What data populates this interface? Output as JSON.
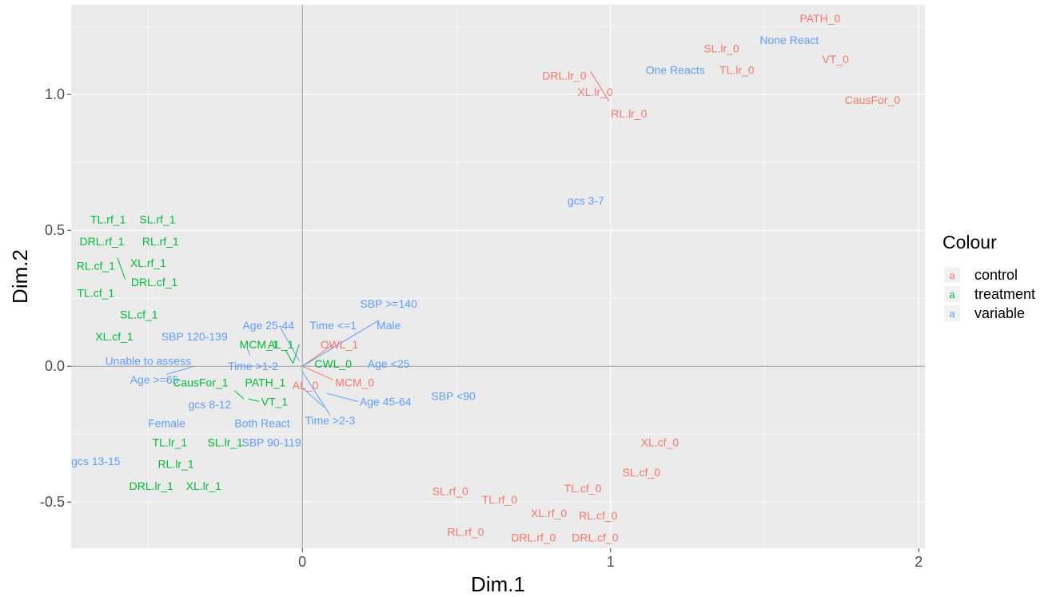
{
  "chart_data": {
    "type": "scatter",
    "xlabel": "Dim.1",
    "ylabel": "Dim.2",
    "xlim": [
      -0.75,
      2.02
    ],
    "ylim": [
      -0.67,
      1.33
    ],
    "x_ticks": [
      0,
      1,
      2
    ],
    "x_tick_labels": [
      "0",
      "1",
      "2"
    ],
    "y_ticks": [
      -0.5,
      0.0,
      0.5,
      1.0
    ],
    "y_tick_labels": [
      "-0.5",
      "0.0",
      "0.5",
      "1.0"
    ],
    "grid": true,
    "reference_lines": {
      "x": 0,
      "y": 0
    },
    "legend": {
      "title": "Colour",
      "key_glyph": "a",
      "placement": "right",
      "entries": [
        {
          "name": "control",
          "color": "#F8766D"
        },
        {
          "name": "treatment",
          "color": "#00BA38"
        },
        {
          "name": "variable",
          "color": "#619CFF"
        }
      ]
    },
    "points": [
      {
        "label": "PATH_0",
        "group": "control",
        "x": 1.68,
        "y": 1.28
      },
      {
        "label": "None React",
        "group": "variable",
        "x": 1.58,
        "y": 1.2
      },
      {
        "label": "SL.lr_0",
        "group": "control",
        "x": 1.36,
        "y": 1.17
      },
      {
        "label": "VT_0",
        "group": "control",
        "x": 1.73,
        "y": 1.13
      },
      {
        "label": "One Reacts",
        "group": "variable",
        "x": 1.21,
        "y": 1.09
      },
      {
        "label": "TL.lr_0",
        "group": "control",
        "x": 1.41,
        "y": 1.09
      },
      {
        "label": "DRL.lr_0",
        "group": "control",
        "x": 0.85,
        "y": 1.07
      },
      {
        "label": "XL.lr_0",
        "group": "control",
        "x": 0.95,
        "y": 1.01
      },
      {
        "label": "CausFor_0",
        "group": "control",
        "x": 1.85,
        "y": 0.98
      },
      {
        "label": "RL.lr_0",
        "group": "control",
        "x": 1.06,
        "y": 0.93
      },
      {
        "label": "gcs 3-7",
        "group": "variable",
        "x": 0.92,
        "y": 0.61
      },
      {
        "label": "TL.rf_1",
        "group": "treatment",
        "x": -0.63,
        "y": 0.54
      },
      {
        "label": "SL.rf_1",
        "group": "treatment",
        "x": -0.47,
        "y": 0.54
      },
      {
        "label": "DRL.rf_1",
        "group": "treatment",
        "x": -0.65,
        "y": 0.46
      },
      {
        "label": "RL.rf_1",
        "group": "treatment",
        "x": -0.46,
        "y": 0.46
      },
      {
        "label": "XL.rf_1",
        "group": "treatment",
        "x": -0.5,
        "y": 0.38
      },
      {
        "label": "RL.cf_1",
        "group": "treatment",
        "x": -0.67,
        "y": 0.37
      },
      {
        "label": "DRL.cf_1",
        "group": "treatment",
        "x": -0.48,
        "y": 0.31
      },
      {
        "label": "TL.cf_1",
        "group": "treatment",
        "x": -0.67,
        "y": 0.27
      },
      {
        "label": "SBP >=140",
        "group": "variable",
        "x": 0.28,
        "y": 0.23
      },
      {
        "label": "SL.cf_1",
        "group": "treatment",
        "x": -0.53,
        "y": 0.19
      },
      {
        "label": "Age 25-44",
        "group": "variable",
        "x": -0.11,
        "y": 0.15
      },
      {
        "label": "Time <=1",
        "group": "variable",
        "x": 0.1,
        "y": 0.15
      },
      {
        "label": "Male",
        "group": "variable",
        "x": 0.28,
        "y": 0.15
      },
      {
        "label": "XL.cf_1",
        "group": "treatment",
        "x": -0.61,
        "y": 0.11
      },
      {
        "label": "SBP 120-139",
        "group": "variable",
        "x": -0.35,
        "y": 0.11
      },
      {
        "label": "MCM_1",
        "group": "treatment",
        "x": -0.14,
        "y": 0.08
      },
      {
        "label": "AL_1",
        "group": "treatment",
        "x": -0.07,
        "y": 0.08
      },
      {
        "label": "OWL_1",
        "group": "control",
        "x": 0.12,
        "y": 0.08
      },
      {
        "label": "Unable to assess",
        "group": "variable",
        "x": -0.5,
        "y": 0.02
      },
      {
        "label": "Time >1-2",
        "group": "variable",
        "x": -0.16,
        "y": 0.0
      },
      {
        "label": "CWL_0",
        "group": "treatment",
        "x": 0.1,
        "y": 0.01
      },
      {
        "label": "Age <25",
        "group": "variable",
        "x": 0.28,
        "y": 0.01
      },
      {
        "label": "Age >=65",
        "group": "variable",
        "x": -0.48,
        "y": -0.05
      },
      {
        "label": "CausFor_1",
        "group": "treatment",
        "x": -0.33,
        "y": -0.06
      },
      {
        "label": "PATH_1",
        "group": "treatment",
        "x": -0.12,
        "y": -0.06
      },
      {
        "label": "AL_0",
        "group": "control",
        "x": 0.01,
        "y": -0.07
      },
      {
        "label": "MCM_0",
        "group": "control",
        "x": 0.17,
        "y": -0.06
      },
      {
        "label": "SBP <90",
        "group": "variable",
        "x": 0.49,
        "y": -0.11
      },
      {
        "label": "gcs 8-12",
        "group": "variable",
        "x": -0.3,
        "y": -0.14
      },
      {
        "label": "VT_1",
        "group": "treatment",
        "x": -0.09,
        "y": -0.13
      },
      {
        "label": "Age 45-64",
        "group": "variable",
        "x": 0.27,
        "y": -0.13
      },
      {
        "label": "Female",
        "group": "variable",
        "x": -0.44,
        "y": -0.21
      },
      {
        "label": "Both React",
        "group": "variable",
        "x": -0.13,
        "y": -0.21
      },
      {
        "label": "Time >2-3",
        "group": "variable",
        "x": 0.09,
        "y": -0.2
      },
      {
        "label": "XL.cf_0",
        "group": "control",
        "x": 1.16,
        "y": -0.28
      },
      {
        "label": "TL.lr_1",
        "group": "treatment",
        "x": -0.43,
        "y": -0.28
      },
      {
        "label": "SL.lr_1",
        "group": "treatment",
        "x": -0.25,
        "y": -0.28
      },
      {
        "label": "SBP 90-119",
        "group": "variable",
        "x": -0.1,
        "y": -0.28
      },
      {
        "label": "gcs 13-15",
        "group": "variable",
        "x": -0.67,
        "y": -0.35
      },
      {
        "label": "RL.lr_1",
        "group": "treatment",
        "x": -0.41,
        "y": -0.36
      },
      {
        "label": "SL.cf_0",
        "group": "control",
        "x": 1.1,
        "y": -0.39
      },
      {
        "label": "DRL.lr_1",
        "group": "treatment",
        "x": -0.49,
        "y": -0.44
      },
      {
        "label": "XL.lr_1",
        "group": "treatment",
        "x": -0.32,
        "y": -0.44
      },
      {
        "label": "TL.cf_0",
        "group": "control",
        "x": 0.91,
        "y": -0.45
      },
      {
        "label": "SL.rf_0",
        "group": "control",
        "x": 0.48,
        "y": -0.46
      },
      {
        "label": "TL.rf_0",
        "group": "control",
        "x": 0.64,
        "y": -0.49
      },
      {
        "label": "XL.rf_0",
        "group": "control",
        "x": 0.8,
        "y": -0.54
      },
      {
        "label": "RL.cf_0",
        "group": "control",
        "x": 0.96,
        "y": -0.55
      },
      {
        "label": "RL.rf_0",
        "group": "control",
        "x": 0.53,
        "y": -0.61
      },
      {
        "label": "DRL.rf_0",
        "group": "control",
        "x": 0.75,
        "y": -0.63
      },
      {
        "label": "DRL.cf_0",
        "group": "control",
        "x": 0.95,
        "y": -0.63
      }
    ],
    "segments": [
      {
        "group": "control",
        "x1": 0.935,
        "y1": 1.085,
        "x2": 0.995,
        "y2": 0.975
      },
      {
        "group": "control",
        "x1": 0.0,
        "y1": 0.0,
        "x2": 0.1,
        "y2": 0.08
      },
      {
        "group": "control",
        "x1": 0.0,
        "y1": 0.0,
        "x2": 0.1,
        "y2": -0.05
      },
      {
        "group": "treatment",
        "x1": -0.6,
        "y1": 0.4,
        "x2": -0.575,
        "y2": 0.32
      },
      {
        "group": "treatment",
        "x1": -0.22,
        "y1": -0.09,
        "x2": -0.19,
        "y2": -0.12
      },
      {
        "group": "treatment",
        "x1": -0.14,
        "y1": -0.13,
        "x2": -0.175,
        "y2": -0.12
      },
      {
        "group": "treatment",
        "x1": -0.03,
        "y1": 0.01,
        "x2": -0.01,
        "y2": 0.08
      },
      {
        "group": "treatment",
        "x1": -0.03,
        "y1": 0.01,
        "x2": -0.055,
        "y2": 0.06
      },
      {
        "group": "treatment",
        "x1": 0.0,
        "y1": 0.0,
        "x2": 0.03,
        "y2": 0.02
      },
      {
        "group": "variable",
        "x1": 0.0,
        "y1": 0.0,
        "x2": 0.25,
        "y2": 0.17
      },
      {
        "group": "variable",
        "x1": -0.07,
        "y1": 0.14,
        "x2": -0.01,
        "y2": 0.02
      },
      {
        "group": "variable",
        "x1": -0.18,
        "y1": 0.07,
        "x2": -0.17,
        "y2": 0.04
      },
      {
        "group": "variable",
        "x1": -0.44,
        "y1": -0.03,
        "x2": -0.35,
        "y2": 0.0
      },
      {
        "group": "variable",
        "x1": 0.0,
        "y1": -0.08,
        "x2": 0.07,
        "y2": -0.15
      },
      {
        "group": "variable",
        "x1": 0.08,
        "y1": -0.1,
        "x2": 0.18,
        "y2": -0.13
      },
      {
        "group": "variable",
        "x1": 0.0,
        "y1": -0.02,
        "x2": 0.09,
        "y2": -0.18
      }
    ]
  }
}
